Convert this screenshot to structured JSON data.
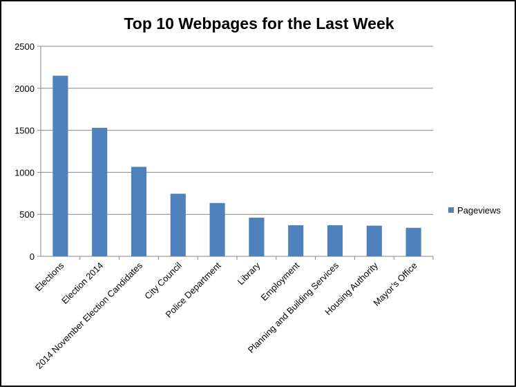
{
  "chart_data": {
    "type": "bar",
    "title": "Top 10 Webpages for the Last Week",
    "xlabel": "",
    "ylabel": "",
    "categories": [
      "Elections",
      "Election 2014",
      "2014 November Election Candidates",
      "City Council",
      "Police Department",
      "Library",
      "Employment",
      "Planning and Building Services",
      "Housing Authority",
      "Mayor’s Office"
    ],
    "series": [
      {
        "name": "Pageviews",
        "color": "#4F81BD",
        "values": [
          2150,
          1530,
          1065,
          745,
          635,
          460,
          370,
          370,
          365,
          340
        ]
      }
    ],
    "ylim": [
      0,
      2500
    ],
    "yticks": [
      0,
      500,
      1000,
      1500,
      2000,
      2500
    ],
    "grid": true,
    "legend": "right"
  }
}
